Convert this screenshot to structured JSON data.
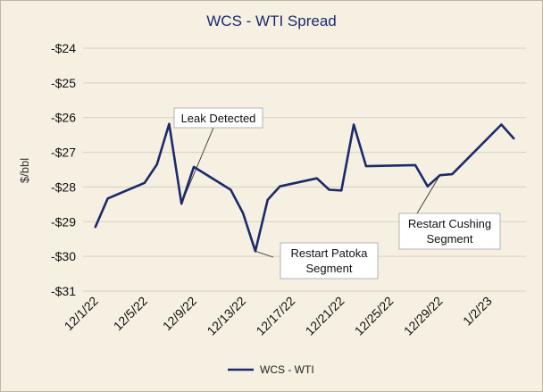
{
  "chart_data": {
    "type": "line",
    "title": "WCS - WTI Spread",
    "ylabel": "$/bbl",
    "xlabel": "",
    "ylim": [
      -31,
      -24
    ],
    "yticks": [
      -24,
      -25,
      -26,
      -27,
      -28,
      -29,
      -30,
      -31
    ],
    "ytick_labels": [
      "-$24",
      "-$25",
      "-$26",
      "-$27",
      "-$28",
      "-$29",
      "-$30",
      "-$31"
    ],
    "xtick_labels": [
      "12/1/22",
      "12/5/22",
      "12/9/22",
      "12/13/22",
      "12/17/22",
      "12/21/22",
      "12/25/22",
      "12/29/22",
      "1/2/23"
    ],
    "xtick_dates": [
      "2022-12-01",
      "2022-12-05",
      "2022-12-09",
      "2022-12-13",
      "2022-12-17",
      "2022-12-21",
      "2022-12-25",
      "2022-12-29",
      "2023-01-02"
    ],
    "xlim": [
      "2022-11-30",
      "2023-01-05"
    ],
    "legend_position": "bottom",
    "grid": "horizontal",
    "series": [
      {
        "name": "WCS - WTI",
        "color": "#1c2a6b",
        "x": [
          "2022-12-01",
          "2022-12-02",
          "2022-12-05",
          "2022-12-06",
          "2022-12-07",
          "2022-12-08",
          "2022-12-09",
          "2022-12-12",
          "2022-12-13",
          "2022-12-14",
          "2022-12-15",
          "2022-12-16",
          "2022-12-19",
          "2022-12-20",
          "2022-12-21",
          "2022-12-22",
          "2022-12-23",
          "2022-12-27",
          "2022-12-28",
          "2022-12-29",
          "2022-12-30",
          "2023-01-03",
          "2023-01-04"
        ],
        "y": [
          -29.15,
          -28.33,
          -27.88,
          -27.35,
          -26.18,
          -28.48,
          -27.42,
          -28.08,
          -28.75,
          -29.85,
          -28.37,
          -27.98,
          -27.75,
          -28.08,
          -28.1,
          -26.2,
          -27.4,
          -27.37,
          -27.98,
          -27.66,
          -27.63,
          -26.2,
          -26.6
        ]
      }
    ],
    "annotations": [
      {
        "lines": [
          "Leak Detected"
        ],
        "target": {
          "x": "2022-12-08",
          "y": -28.48
        }
      },
      {
        "lines": [
          "Restart Patoka",
          "Segment"
        ],
        "target": {
          "x": "2022-12-14",
          "y": -29.85
        }
      },
      {
        "lines": [
          "Restart Cushing",
          "Segment"
        ],
        "target": {
          "x": "2022-12-29",
          "y": -27.66
        }
      }
    ]
  }
}
